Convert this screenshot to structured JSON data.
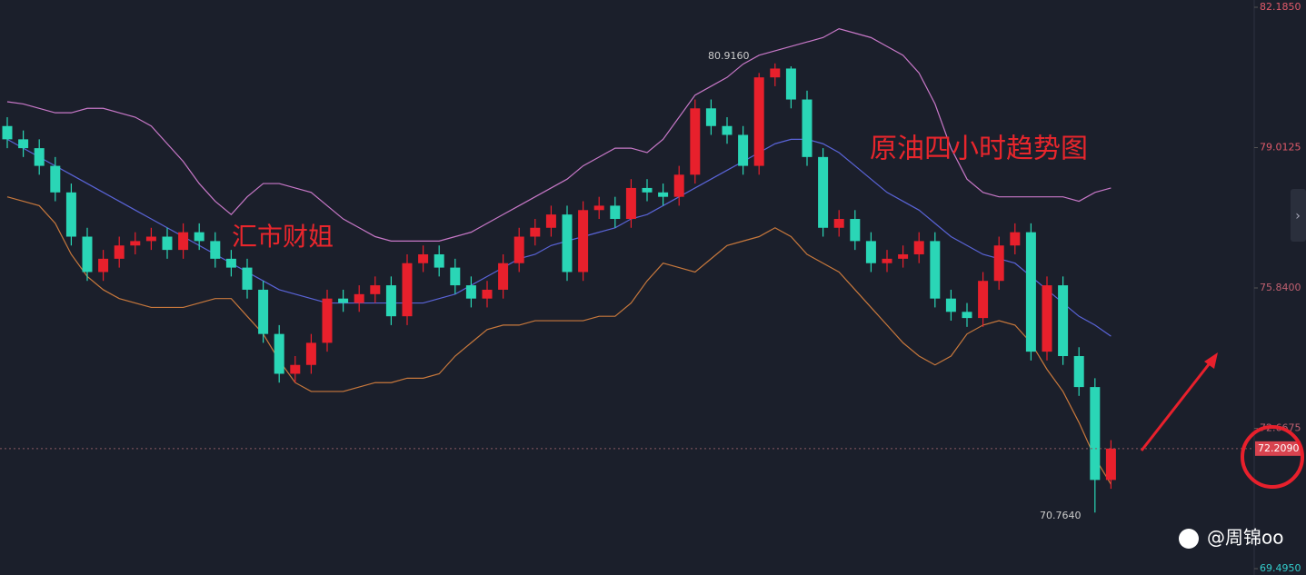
{
  "chart_data": {
    "type": "candlestick",
    "open": [
      79.5,
      79.2,
      79.0,
      78.6,
      78.0,
      77.0,
      76.2,
      76.5,
      76.8,
      76.9,
      77.0,
      76.7,
      77.1,
      76.9,
      76.5,
      76.3,
      75.8,
      74.8,
      73.9,
      74.1,
      74.6,
      75.6,
      75.5,
      75.7,
      75.9,
      75.2,
      76.4,
      76.6,
      76.3,
      75.9,
      75.6,
      75.8,
      76.4,
      77.0,
      77.2,
      77.5,
      76.2,
      77.6,
      77.7,
      77.4,
      78.1,
      78.0,
      77.9,
      78.4,
      79.9,
      79.5,
      79.3,
      78.6,
      80.6,
      80.8,
      80.1,
      78.8,
      77.2,
      77.4,
      76.9,
      76.4,
      76.5,
      76.6,
      76.9,
      75.6,
      75.3,
      75.16,
      76.0,
      76.8,
      77.1,
      74.4,
      75.9,
      74.3,
      73.6,
      71.5
    ],
    "high": [
      79.7,
      79.4,
      79.2,
      78.8,
      78.2,
      77.2,
      76.7,
      77.0,
      77.1,
      77.2,
      77.2,
      77.3,
      77.3,
      77.1,
      76.7,
      76.5,
      76.0,
      75.0,
      74.3,
      74.8,
      75.8,
      75.8,
      75.9,
      76.1,
      76.1,
      76.6,
      76.8,
      76.8,
      76.5,
      76.1,
      76.0,
      76.6,
      77.2,
      77.4,
      77.7,
      77.7,
      77.8,
      77.9,
      77.9,
      78.3,
      78.3,
      78.2,
      78.6,
      80.1,
      80.1,
      79.7,
      79.5,
      80.7,
      80.916,
      80.85,
      80.3,
      79.0,
      77.6,
      77.6,
      77.1,
      76.7,
      76.8,
      77.1,
      77.1,
      75.8,
      75.5,
      76.2,
      77.0,
      77.3,
      77.3,
      76.1,
      76.1,
      74.5,
      73.8,
      72.4
    ],
    "low": [
      79.0,
      78.8,
      78.4,
      77.8,
      76.8,
      76.0,
      76.0,
      76.3,
      76.6,
      76.7,
      76.5,
      76.5,
      76.7,
      76.3,
      76.1,
      75.6,
      74.6,
      73.7,
      73.7,
      73.9,
      74.4,
      75.3,
      75.3,
      75.5,
      75.0,
      75.0,
      76.2,
      76.1,
      75.7,
      75.4,
      75.4,
      75.6,
      76.2,
      76.8,
      77.0,
      76.0,
      76.0,
      77.4,
      77.2,
      77.2,
      77.8,
      77.7,
      77.7,
      78.2,
      79.3,
      79.1,
      78.4,
      78.4,
      80.4,
      79.9,
      78.6,
      77.0,
      77.0,
      76.7,
      76.2,
      76.2,
      76.3,
      76.4,
      75.4,
      75.1,
      74.96,
      74.96,
      75.8,
      76.6,
      74.2,
      74.2,
      74.1,
      73.4,
      70.764,
      71.3
    ],
    "close": [
      79.2,
      79.0,
      78.6,
      78.0,
      77.0,
      76.2,
      76.5,
      76.8,
      76.9,
      77.0,
      76.7,
      77.1,
      76.9,
      76.5,
      76.3,
      75.8,
      74.8,
      73.9,
      74.1,
      74.6,
      75.6,
      75.5,
      75.7,
      75.9,
      75.2,
      76.4,
      76.6,
      76.3,
      75.9,
      75.6,
      75.8,
      76.4,
      77.0,
      77.2,
      77.5,
      76.2,
      77.6,
      77.7,
      77.4,
      78.1,
      78.0,
      77.9,
      78.4,
      79.9,
      79.5,
      79.3,
      78.6,
      80.6,
      80.8,
      80.1,
      78.8,
      77.2,
      77.4,
      76.9,
      76.4,
      76.5,
      76.6,
      76.9,
      75.6,
      75.3,
      75.16,
      76.0,
      76.8,
      77.1,
      74.4,
      75.9,
      74.3,
      73.6,
      71.5,
      72.209
    ],
    "up_color": "#e8202c",
    "down_color": "#2ad6b6",
    "bands": {
      "upper": {
        "color": "#c878c8",
        "values": [
          80.05,
          80.0,
          79.9,
          79.8,
          79.8,
          79.9,
          79.9,
          79.8,
          79.7,
          79.5,
          79.1,
          78.7,
          78.2,
          77.8,
          77.5,
          77.9,
          78.2,
          78.2,
          78.1,
          78.0,
          77.7,
          77.4,
          77.2,
          77.0,
          76.9,
          76.9,
          76.9,
          76.9,
          77.0,
          77.1,
          77.3,
          77.5,
          77.7,
          77.9,
          78.1,
          78.3,
          78.6,
          78.8,
          79.0,
          79.0,
          78.9,
          79.2,
          79.7,
          80.2,
          80.4,
          80.6,
          80.9,
          81.1,
          81.2,
          81.3,
          81.4,
          81.5,
          81.7,
          81.6,
          81.5,
          81.3,
          81.1,
          80.7,
          80.0,
          79.0,
          78.3,
          78.0,
          77.9,
          77.9,
          77.9,
          77.9,
          77.9,
          77.8,
          78.0,
          78.1
        ]
      },
      "middle": {
        "color": "#5a64d8",
        "values": [
          79.2,
          79.0,
          78.8,
          78.6,
          78.4,
          78.2,
          78.0,
          77.8,
          77.6,
          77.4,
          77.2,
          77.0,
          76.8,
          76.6,
          76.4,
          76.2,
          76.0,
          75.8,
          75.7,
          75.6,
          75.5,
          75.5,
          75.5,
          75.5,
          75.5,
          75.5,
          75.5,
          75.6,
          75.7,
          75.9,
          76.1,
          76.3,
          76.5,
          76.6,
          76.8,
          76.9,
          77.0,
          77.1,
          77.2,
          77.4,
          77.5,
          77.7,
          77.9,
          78.1,
          78.3,
          78.5,
          78.7,
          78.9,
          79.1,
          79.2,
          79.2,
          79.1,
          78.9,
          78.6,
          78.3,
          78.0,
          77.8,
          77.6,
          77.3,
          77.0,
          76.8,
          76.6,
          76.5,
          76.4,
          76.1,
          75.8,
          75.5,
          75.2,
          75.0,
          74.75
        ]
      },
      "lower": {
        "color": "#c8783c",
        "values": [
          77.9,
          77.8,
          77.7,
          77.3,
          76.6,
          76.1,
          75.8,
          75.6,
          75.5,
          75.4,
          75.4,
          75.4,
          75.5,
          75.6,
          75.6,
          75.2,
          74.8,
          74.2,
          73.7,
          73.5,
          73.5,
          73.5,
          73.6,
          73.7,
          73.7,
          73.8,
          73.8,
          73.9,
          74.3,
          74.6,
          74.9,
          75.0,
          75.0,
          75.1,
          75.1,
          75.1,
          75.1,
          75.2,
          75.2,
          75.5,
          76.0,
          76.4,
          76.3,
          76.2,
          76.5,
          76.8,
          76.9,
          77.0,
          77.2,
          77.0,
          76.6,
          76.4,
          76.2,
          75.8,
          75.4,
          75.0,
          74.6,
          74.3,
          74.1,
          74.3,
          74.8,
          75.0,
          75.1,
          75.0,
          74.6,
          74.0,
          73.5,
          72.8,
          72.0,
          71.4
        ]
      }
    },
    "ylim": [
      69.495,
      82.185
    ],
    "yticks": [
      {
        "value": 82.185,
        "label": "82.1850"
      },
      {
        "value": 79.0125,
        "label": "79.0125"
      },
      {
        "value": 75.84,
        "label": "75.8400"
      },
      {
        "value": 72.6675,
        "label": "72.6675"
      },
      {
        "value": 69.495,
        "label": "69.4950"
      }
    ],
    "last_price": {
      "value": 72.209,
      "label": "72.2090"
    },
    "high_mark": {
      "value": 80.916,
      "label": "80.9160"
    },
    "low_mark": {
      "value": 70.764,
      "label": "70.7640"
    },
    "annotations": [
      "汇市财姐",
      "原油四小时趋势图"
    ],
    "watermark": "@周锦oo"
  }
}
